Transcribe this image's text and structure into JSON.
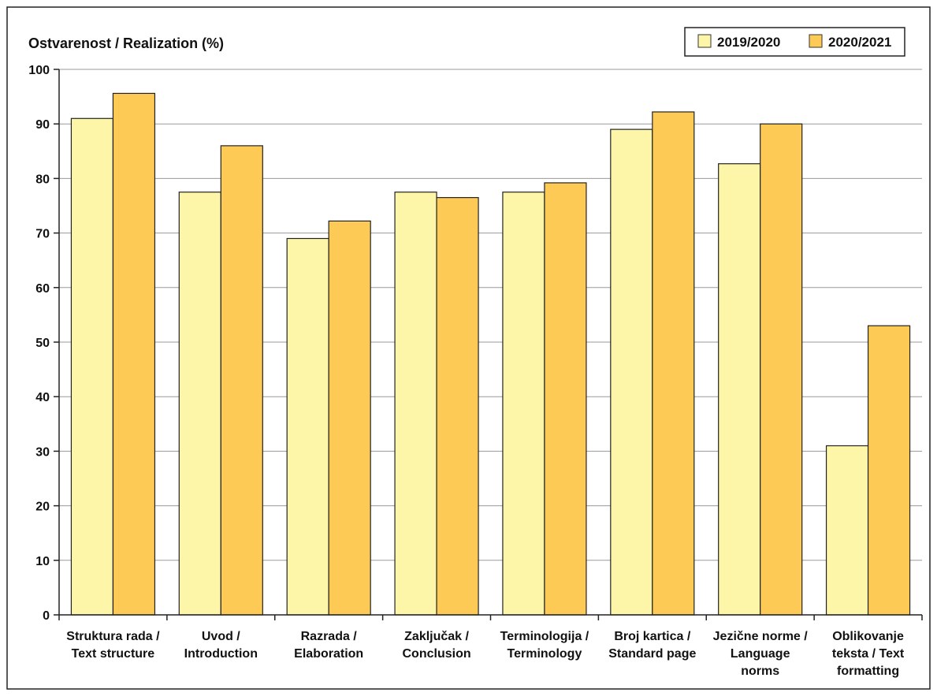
{
  "chart_data": {
    "type": "bar",
    "ylabel": "Ostvarenost / Realization (%)",
    "ylim": [
      0,
      100
    ],
    "yticks": [
      0,
      10,
      20,
      30,
      40,
      50,
      60,
      70,
      80,
      90,
      100
    ],
    "grid": true,
    "legend_position": "top-right",
    "categories": [
      [
        "Struktura rada /",
        "Text structure"
      ],
      [
        "Uvod /",
        "Introduction"
      ],
      [
        "Razrada /",
        "Elaboration"
      ],
      [
        "Zaključak /",
        "Conclusion"
      ],
      [
        "Terminologija /",
        "Terminology"
      ],
      [
        "Broj kartica /",
        "Standard page"
      ],
      [
        "Jezične norme /",
        "Language",
        "norms"
      ],
      [
        "Oblikovanje",
        "teksta / Text",
        "formatting"
      ]
    ],
    "series": [
      {
        "name": "2019/2020",
        "color": "#fdf6a8",
        "values": [
          91,
          77.5,
          69,
          77.5,
          77.5,
          89,
          82.7,
          31
        ]
      },
      {
        "name": "2020/2021",
        "color": "#fdcb55",
        "values": [
          95.6,
          86,
          72.2,
          76.5,
          79.2,
          92.2,
          90,
          53
        ]
      }
    ]
  }
}
